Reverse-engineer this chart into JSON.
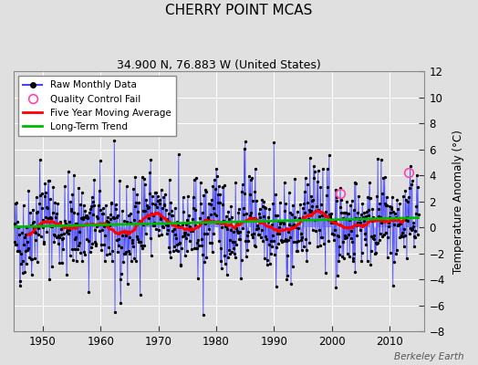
{
  "title": "CHERRY POINT MCAS",
  "subtitle": "34.900 N, 76.883 W (United States)",
  "ylabel": "Temperature Anomaly (°C)",
  "watermark": "Berkeley Earth",
  "xlim": [
    1945,
    2016
  ],
  "ylim": [
    -8,
    12
  ],
  "yticks": [
    -8,
    -6,
    -4,
    -2,
    0,
    2,
    4,
    6,
    8,
    10,
    12
  ],
  "xticks": [
    1950,
    1960,
    1970,
    1980,
    1990,
    2000,
    2010
  ],
  "bg_color": "#e0e0e0",
  "plot_bg_color": "#e0e0e0",
  "raw_color": "#4444ff",
  "dot_color": "#000000",
  "moving_avg_color": "#ff0000",
  "trend_color": "#00bb00",
  "qc_fail_color": "#ff44aa",
  "seed": 42,
  "start_year": 1945,
  "end_year": 2014,
  "n_months": 840,
  "qc_fail_points": [
    [
      2013.25,
      4.2
    ],
    [
      2001.5,
      2.6
    ]
  ]
}
